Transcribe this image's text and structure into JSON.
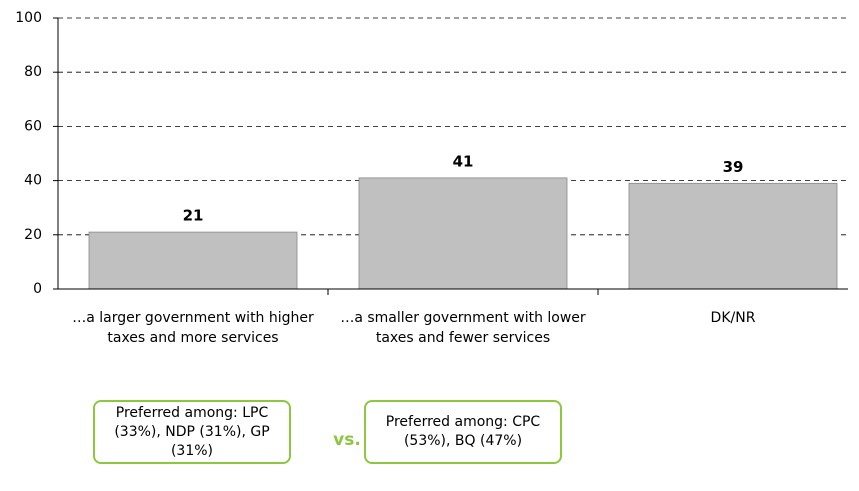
{
  "chart_data": {
    "type": "bar",
    "categories": [
      "…a larger government with higher taxes and more services",
      "…a smaller government with lower taxes and fewer services",
      "DK/NR"
    ],
    "values": [
      21,
      41,
      39
    ],
    "color": "#c0c0c0",
    "ylim": [
      0,
      100
    ],
    "yticks": [
      0,
      20,
      40,
      60,
      80,
      100
    ],
    "grid": true,
    "annotations": [
      "Preferred among: LPC (33%), NDP (31%), GP (31%)",
      "vs.",
      "Preferred among: CPC (53%), BQ (47%)"
    ]
  }
}
